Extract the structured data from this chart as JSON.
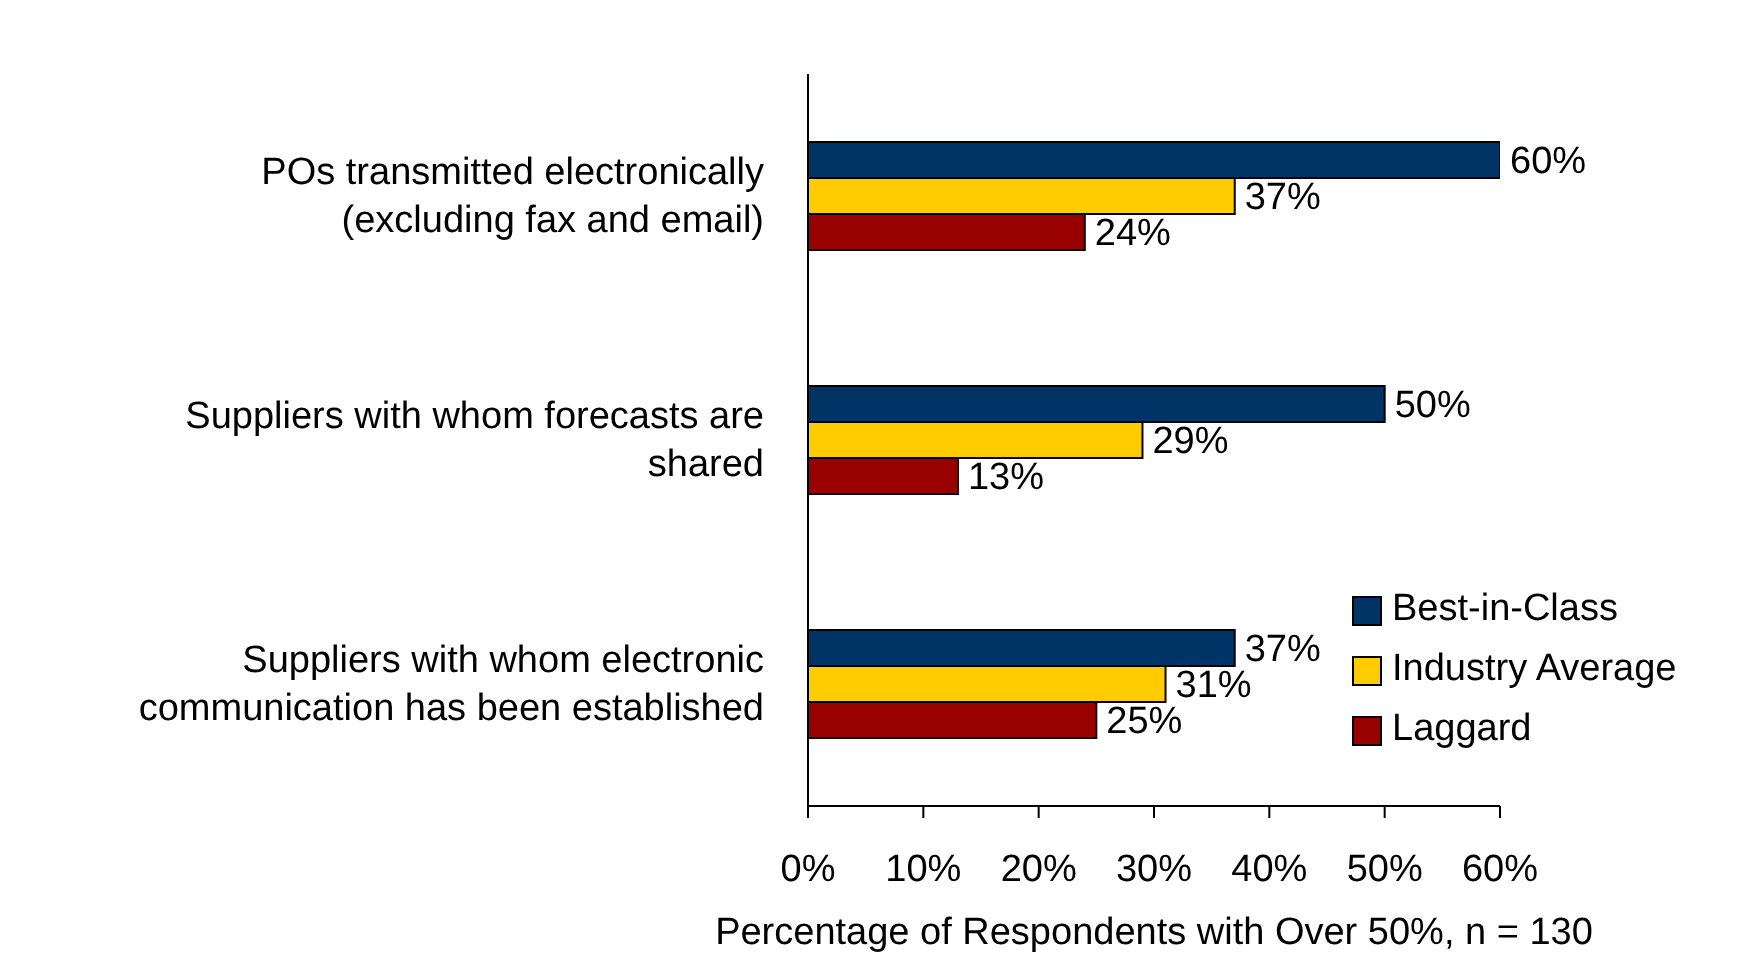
{
  "chart_data": {
    "type": "bar",
    "orientation": "horizontal",
    "xlabel": "Percentage of Respondents with Over 50%, n = 130",
    "categories": [
      "POs transmitted electronically\n(excluding fax and email)",
      "Suppliers with whom forecasts are\nshared",
      "Suppliers with whom electronic\ncommunication has been established"
    ],
    "series": [
      {
        "name": "Best-in-Class",
        "color": "#003366",
        "values": [
          60,
          50,
          37
        ],
        "value_labels": [
          "60%",
          "50%",
          "37%"
        ]
      },
      {
        "name": "Industry Average",
        "color": "#ffcc00",
        "values": [
          37,
          29,
          31
        ],
        "value_labels": [
          "37%",
          "29%",
          "31%"
        ]
      },
      {
        "name": "Laggard",
        "color": "#990000",
        "values": [
          24,
          13,
          25
        ],
        "value_labels": [
          "24%",
          "13%",
          "25%"
        ]
      }
    ],
    "xlim": [
      0,
      60
    ],
    "xticks": [
      {
        "value": 0,
        "label": "0%"
      },
      {
        "value": 10,
        "label": "10%"
      },
      {
        "value": 20,
        "label": "20%"
      },
      {
        "value": 30,
        "label": "30%"
      },
      {
        "value": 40,
        "label": "40%"
      },
      {
        "value": 50,
        "label": "50%"
      },
      {
        "value": 60,
        "label": "60%"
      }
    ],
    "grid": false,
    "legend": "bottom right"
  }
}
